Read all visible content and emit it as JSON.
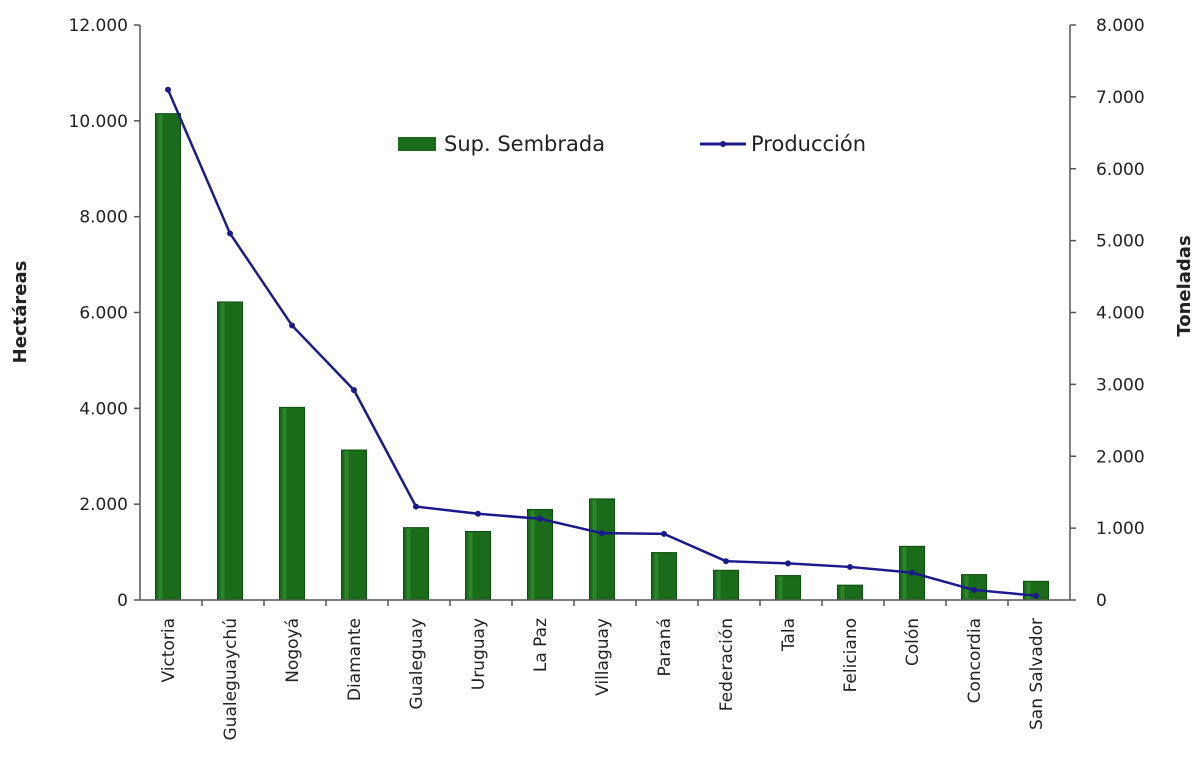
{
  "colors": {
    "bar": "#1a6b1a",
    "bar_highlight": "#3a9a3a",
    "line": "#1a1a8c"
  },
  "chart_data": {
    "type": "bar",
    "categories": [
      "Victoria",
      "Gualeguaychú",
      "Nogoyá",
      "Diamante",
      "Gualeguay",
      "Uruguay",
      "La Paz",
      "Villaguay",
      "Paraná",
      "Federación",
      "Tala",
      "Feliciano",
      "Colón",
      "Concordia",
      "San Salvador"
    ],
    "series": [
      {
        "name": "Sup. Sembrada",
        "type": "bar",
        "axis": "left",
        "values": [
          10150,
          6220,
          4020,
          3130,
          1510,
          1430,
          1890,
          2110,
          990,
          620,
          510,
          310,
          1120,
          530,
          390
        ]
      },
      {
        "name": "Producción",
        "type": "line",
        "axis": "right",
        "values": [
          7100,
          5100,
          3820,
          2920,
          1300,
          1200,
          1130,
          930,
          920,
          540,
          510,
          460,
          380,
          140,
          60
        ]
      }
    ],
    "ylabel": "Hectáreas",
    "y2label": "Toneladas",
    "ylim": [
      0,
      12000
    ],
    "y2lim": [
      0,
      8000
    ],
    "yticks": [
      "0",
      "2.000",
      "4.000",
      "6.000",
      "8.000",
      "10.000",
      "12.000"
    ],
    "y2ticks": [
      "0",
      "1.000",
      "2.000",
      "3.000",
      "4.000",
      "5.000",
      "6.000",
      "7.000",
      "8.000"
    ],
    "legend_position": "top-center",
    "grid": false
  }
}
